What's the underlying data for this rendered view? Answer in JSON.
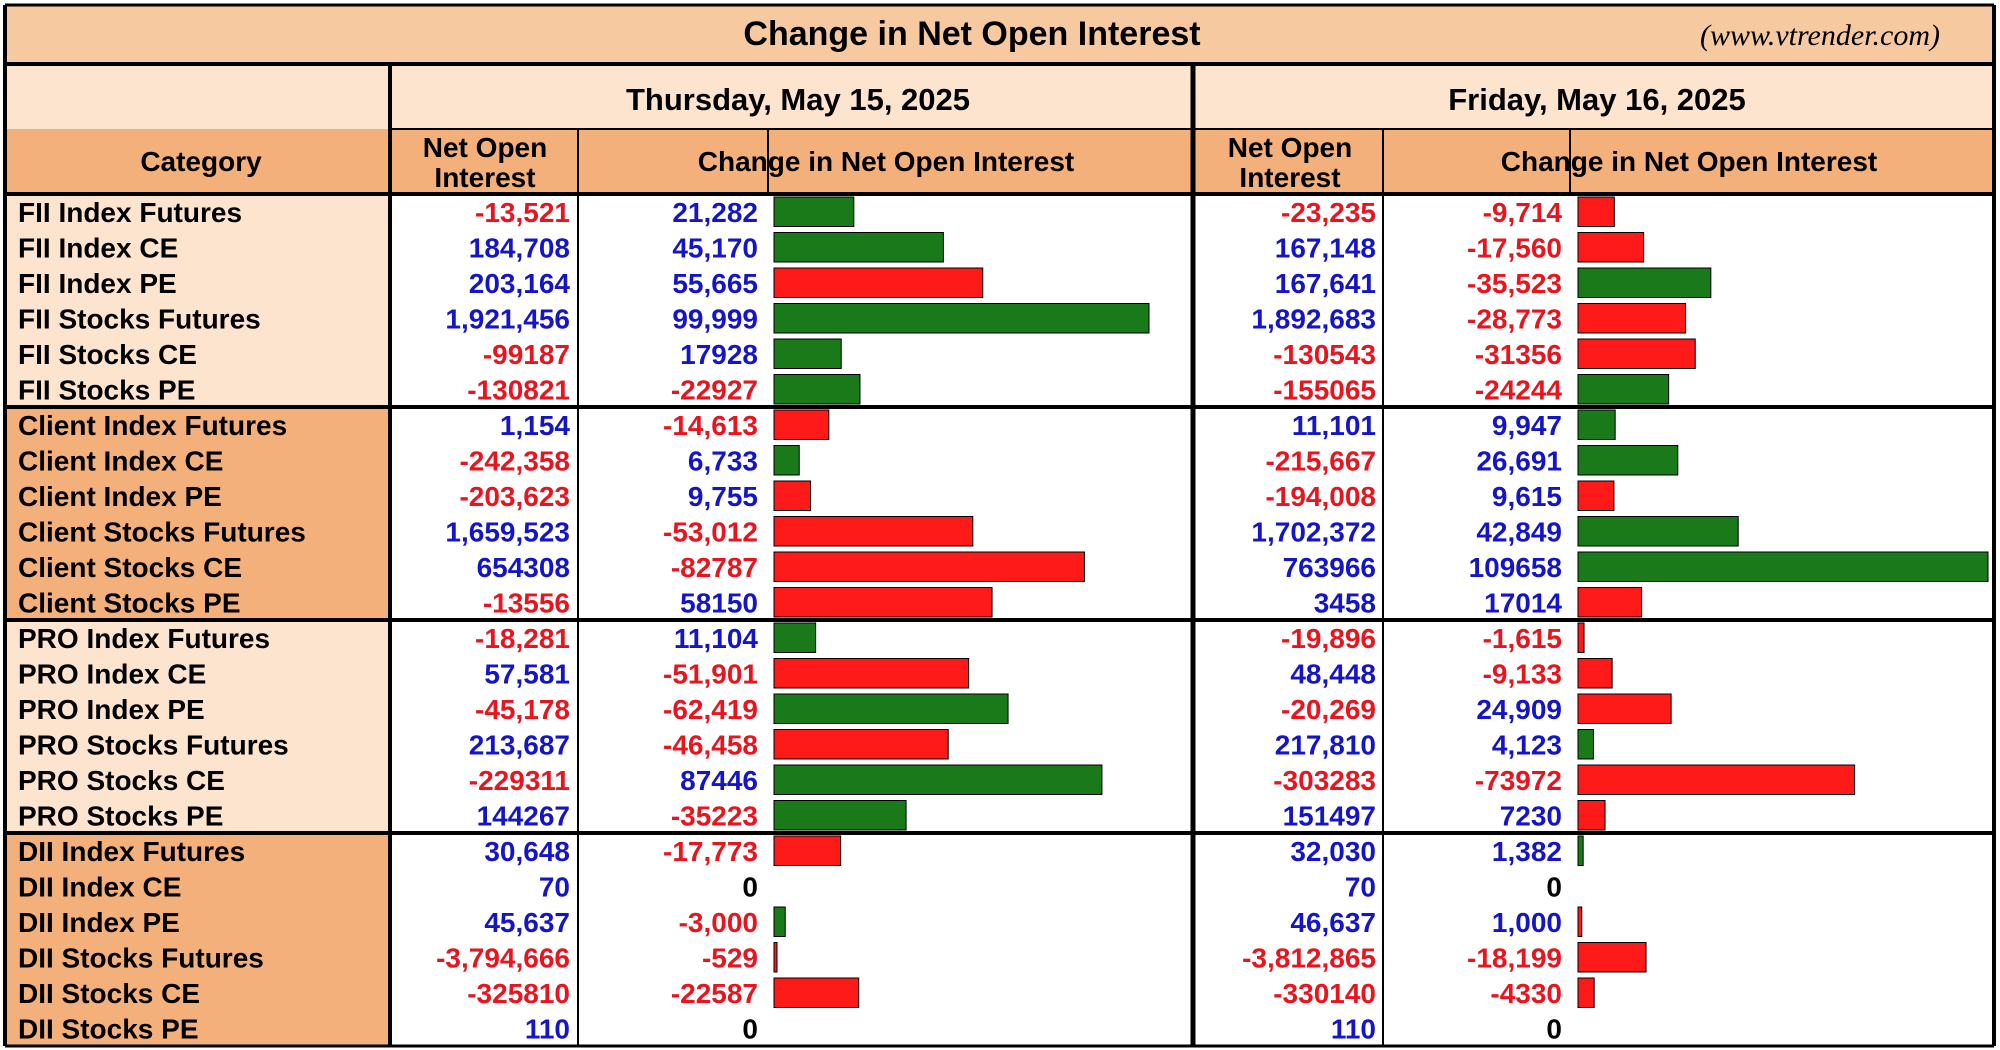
{
  "title": "Change in Net Open Interest",
  "source": "(www.vtrender.com)",
  "colors": {
    "header_bg": "#f7c9a0",
    "light_bg": "#fce4ce",
    "dark_bg": "#f4b07a",
    "positive_text": "#1515c8",
    "negative_text": "#e8141e",
    "zero_text": "#000000",
    "bar_green": "#1a7a1a",
    "bar_red": "#ff1a1a",
    "border": "#000000"
  },
  "headers": {
    "category": "Category",
    "net_oi": [
      "Net Open",
      "Interest"
    ],
    "change": "Change in Net Open Interest"
  },
  "days": [
    {
      "date": "Thursday, May 15, 2025"
    },
    {
      "date": "Friday, May 16, 2025"
    }
  ],
  "chart_data": {
    "type": "table",
    "title": "Change in Net Open Interest",
    "columns": [
      "Category",
      "Thursday, May 15, 2025 Net Open Interest",
      "Thursday, May 15, 2025 Change in Net Open Interest",
      "Friday, May 16, 2025 Net Open Interest",
      "Friday, May 16, 2025 Change in Net Open Interest"
    ],
    "rows": [
      {
        "category": "FII Index Futures",
        "d1_noi": "-13,521",
        "d1_chg": "21,282",
        "d1_bar": "green",
        "d2_noi": "-23,235",
        "d2_chg": "-9,714",
        "d2_bar": "red"
      },
      {
        "category": "FII Index CE",
        "d1_noi": "184,708",
        "d1_chg": "45,170",
        "d1_bar": "green",
        "d2_noi": "167,148",
        "d2_chg": "-17,560",
        "d2_bar": "red"
      },
      {
        "category": "FII Index PE",
        "d1_noi": "203,164",
        "d1_chg": "55,665",
        "d1_bar": "red",
        "d2_noi": "167,641",
        "d2_chg": "-35,523",
        "d2_bar": "green"
      },
      {
        "category": "FII Stocks Futures",
        "d1_noi": "1,921,456",
        "d1_chg": "99,999",
        "d1_bar": "green",
        "d2_noi": "1,892,683",
        "d2_chg": "-28,773",
        "d2_bar": "red"
      },
      {
        "category": "FII Stocks CE",
        "d1_noi": "-99187",
        "d1_chg": "17928",
        "d1_bar": "green",
        "d2_noi": "-130543",
        "d2_chg": "-31356",
        "d2_bar": "red"
      },
      {
        "category": "FII Stocks PE",
        "d1_noi": "-130821",
        "d1_chg": "-22927",
        "d1_bar": "green",
        "d2_noi": "-155065",
        "d2_chg": "-24244",
        "d2_bar": "green"
      },
      {
        "category": "Client Index Futures",
        "d1_noi": "1,154",
        "d1_chg": "-14,613",
        "d1_bar": "red",
        "d2_noi": "11,101",
        "d2_chg": "9,947",
        "d2_bar": "green"
      },
      {
        "category": "Client Index CE",
        "d1_noi": "-242,358",
        "d1_chg": "6,733",
        "d1_bar": "green",
        "d2_noi": "-215,667",
        "d2_chg": "26,691",
        "d2_bar": "green"
      },
      {
        "category": "Client Index PE",
        "d1_noi": "-203,623",
        "d1_chg": "9,755",
        "d1_bar": "red",
        "d2_noi": "-194,008",
        "d2_chg": "9,615",
        "d2_bar": "red"
      },
      {
        "category": "Client Stocks Futures",
        "d1_noi": "1,659,523",
        "d1_chg": "-53,012",
        "d1_bar": "red",
        "d2_noi": "1,702,372",
        "d2_chg": "42,849",
        "d2_bar": "green"
      },
      {
        "category": "Client Stocks CE",
        "d1_noi": "654308",
        "d1_chg": "-82787",
        "d1_bar": "red",
        "d2_noi": "763966",
        "d2_chg": "109658",
        "d2_bar": "green"
      },
      {
        "category": "Client Stocks PE",
        "d1_noi": "-13556",
        "d1_chg": "58150",
        "d1_bar": "red",
        "d2_noi": "3458",
        "d2_chg": "17014",
        "d2_bar": "red"
      },
      {
        "category": "PRO Index Futures",
        "d1_noi": "-18,281",
        "d1_chg": "11,104",
        "d1_bar": "green",
        "d2_noi": "-19,896",
        "d2_chg": "-1,615",
        "d2_bar": "red"
      },
      {
        "category": "PRO Index CE",
        "d1_noi": "57,581",
        "d1_chg": "-51,901",
        "d1_bar": "red",
        "d2_noi": "48,448",
        "d2_chg": "-9,133",
        "d2_bar": "red"
      },
      {
        "category": "PRO Index PE",
        "d1_noi": "-45,178",
        "d1_chg": "-62,419",
        "d1_bar": "green",
        "d2_noi": "-20,269",
        "d2_chg": "24,909",
        "d2_bar": "red"
      },
      {
        "category": "PRO Stocks Futures",
        "d1_noi": "213,687",
        "d1_chg": "-46,458",
        "d1_bar": "red",
        "d2_noi": "217,810",
        "d2_chg": "4,123",
        "d2_bar": "green"
      },
      {
        "category": "PRO Stocks CE",
        "d1_noi": "-229311",
        "d1_chg": "87446",
        "d1_bar": "green",
        "d2_noi": "-303283",
        "d2_chg": "-73972",
        "d2_bar": "red"
      },
      {
        "category": "PRO Stocks PE",
        "d1_noi": "144267",
        "d1_chg": "-35223",
        "d1_bar": "green",
        "d2_noi": "151497",
        "d2_chg": "7230",
        "d2_bar": "red"
      },
      {
        "category": "DII Index Futures",
        "d1_noi": "30,648",
        "d1_chg": "-17,773",
        "d1_bar": "red",
        "d2_noi": "32,030",
        "d2_chg": "1,382",
        "d2_bar": "green"
      },
      {
        "category": "DII Index CE",
        "d1_noi": "70",
        "d1_chg": "0",
        "d1_bar": "none",
        "d2_noi": "70",
        "d2_chg": "0",
        "d2_bar": "none"
      },
      {
        "category": "DII Index PE",
        "d1_noi": "45,637",
        "d1_chg": "-3,000",
        "d1_bar": "green",
        "d2_noi": "46,637",
        "d2_chg": "1,000",
        "d2_bar": "red"
      },
      {
        "category": "DII Stocks Futures",
        "d1_noi": "-3,794,666",
        "d1_chg": "-529",
        "d1_bar": "red",
        "d2_noi": "-3,812,865",
        "d2_chg": "-18,199",
        "d2_bar": "red"
      },
      {
        "category": "DII Stocks CE",
        "d1_noi": "-325810",
        "d1_chg": "-22587",
        "d1_bar": "red",
        "d2_noi": "-330140",
        "d2_chg": "-4330",
        "d2_bar": "red"
      },
      {
        "category": "DII Stocks PE",
        "d1_noi": "110",
        "d1_chg": "0",
        "d1_bar": "none",
        "d2_noi": "110",
        "d2_chg": "0",
        "d2_bar": "none"
      }
    ]
  }
}
